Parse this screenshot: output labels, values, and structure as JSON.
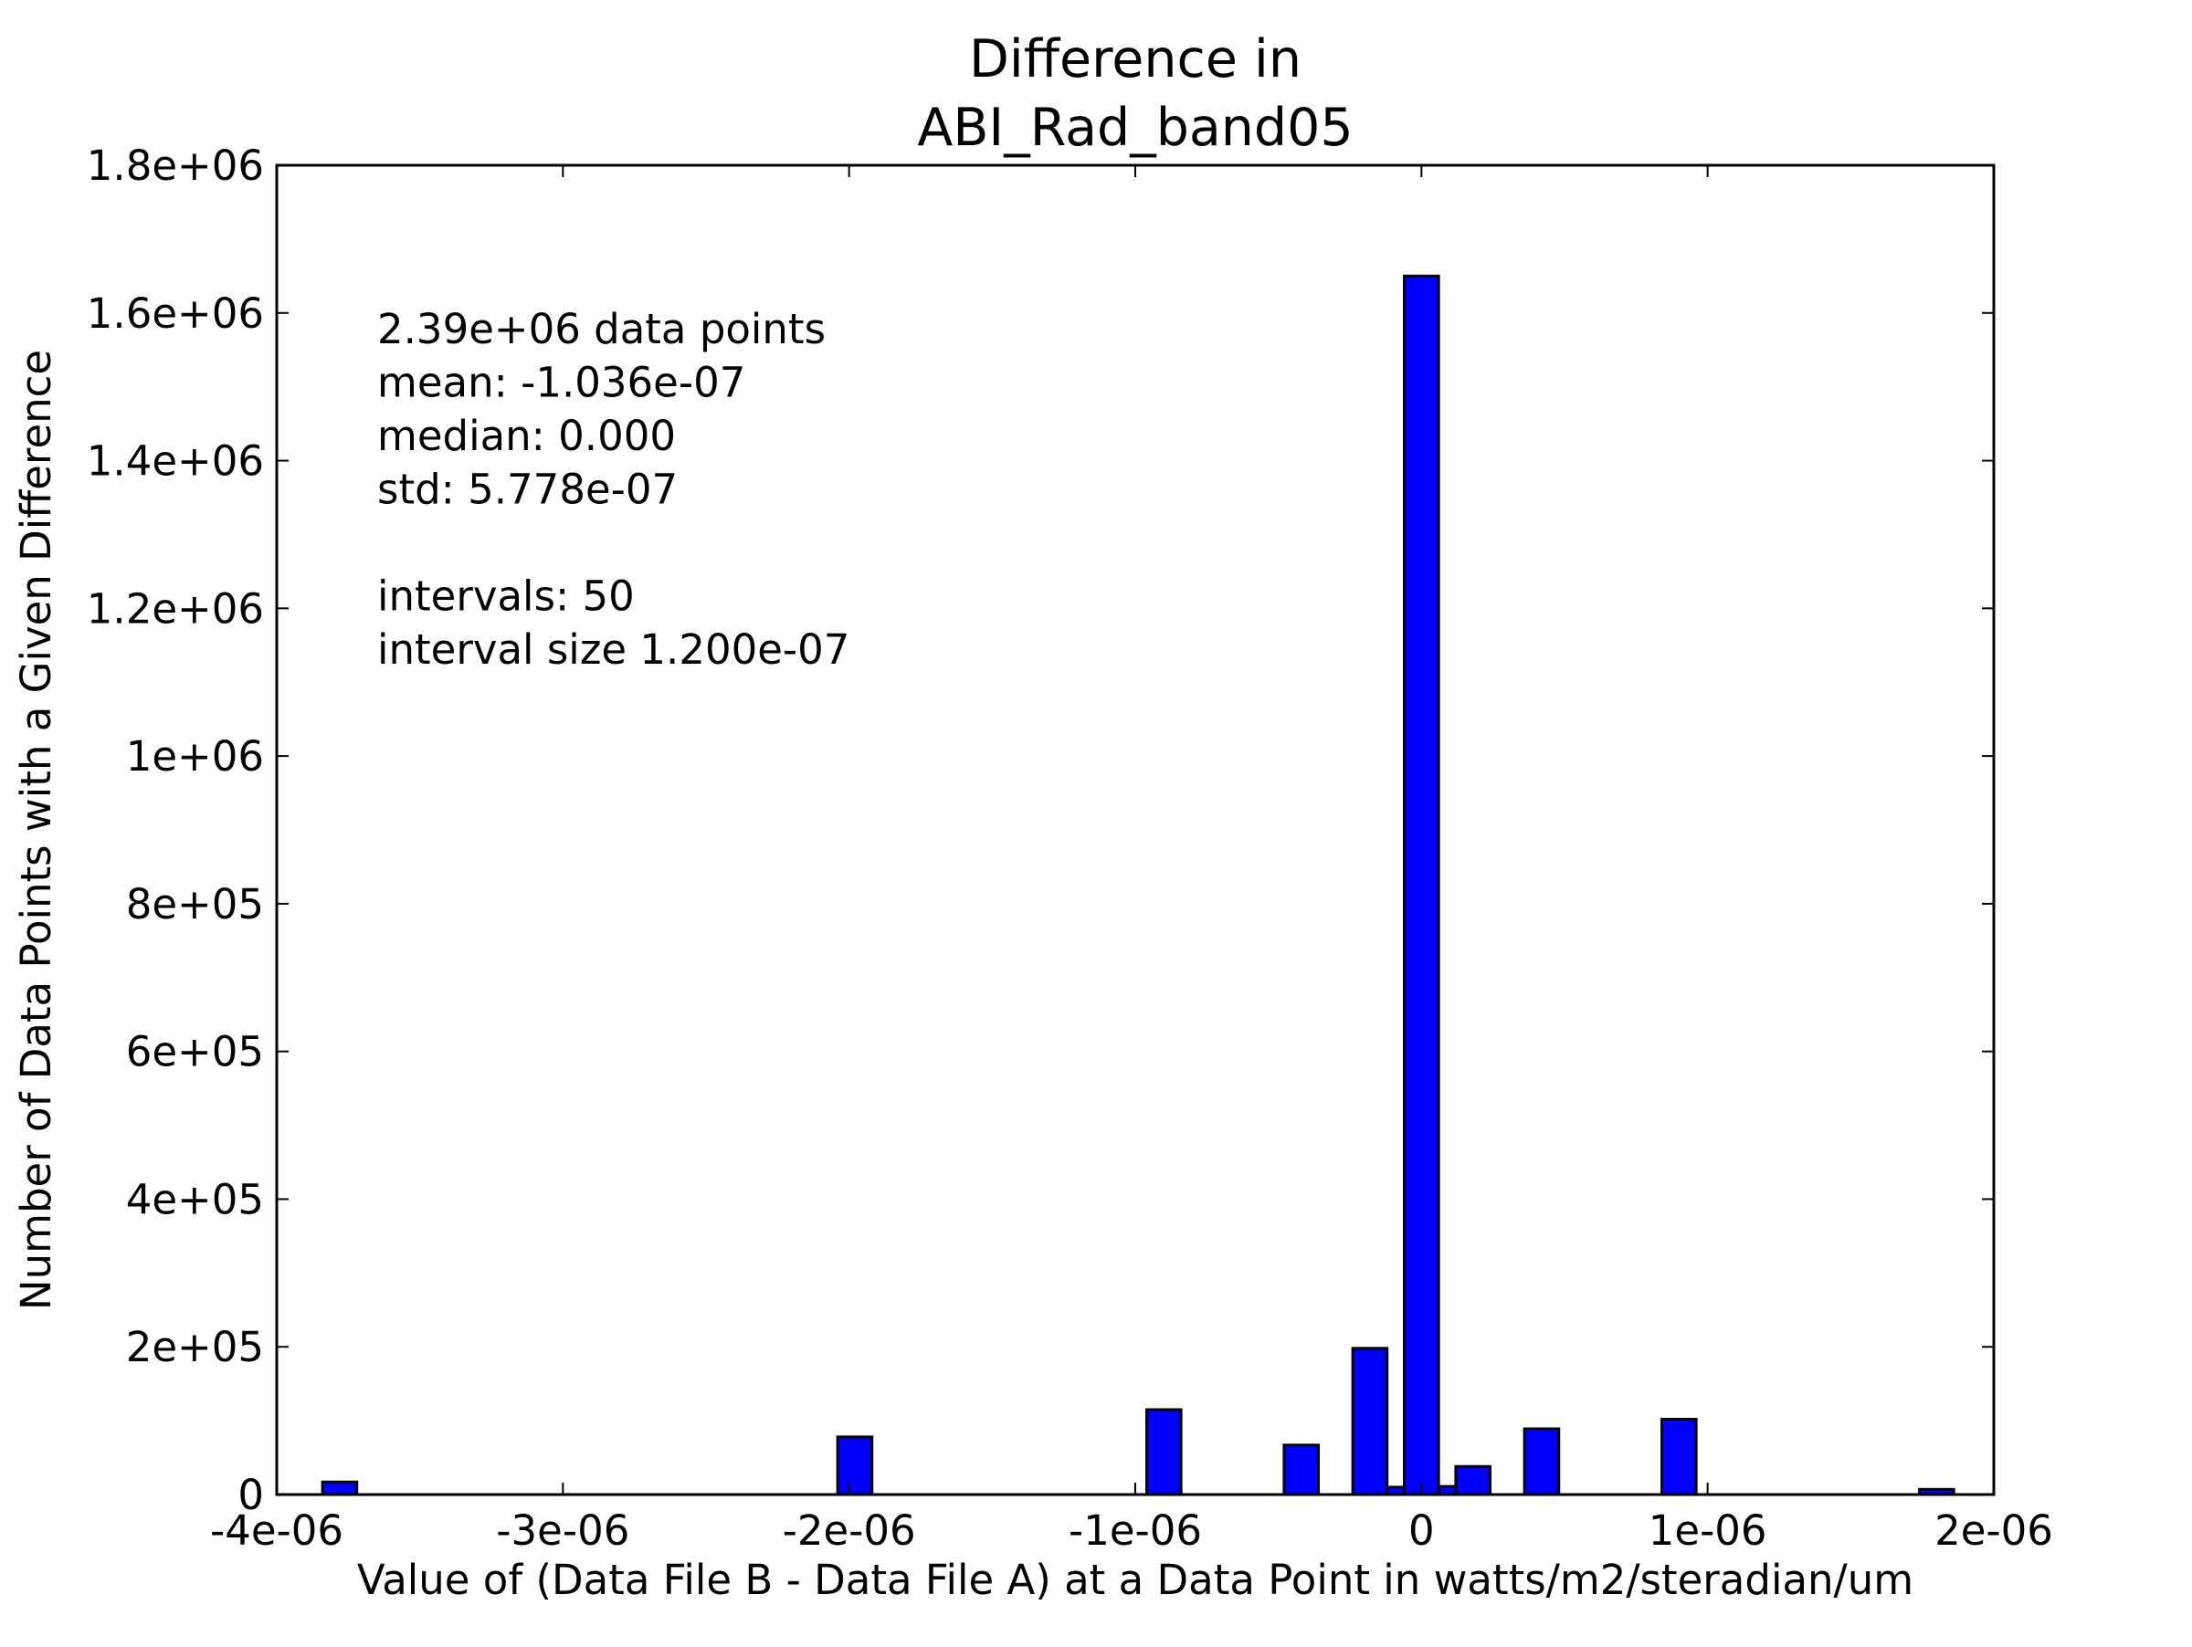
{
  "chart_data": {
    "type": "bar",
    "title": [
      "Difference in",
      "ABI_Rad_band05"
    ],
    "xlabel": "Value of (Data File B - Data File A) at a Data Point in watts/m2/steradian/um",
    "ylabel": "Number of Data Points with a Given Difference",
    "xlim": [
      -4e-06,
      2e-06
    ],
    "ylim": [
      0,
      1800000
    ],
    "x_ticks": [
      -4e-06,
      -3e-06,
      -2e-06,
      -1e-06,
      0,
      1e-06,
      2e-06
    ],
    "x_tick_labels": [
      "-4e-06",
      "-3e-06",
      "-2e-06",
      "-1e-06",
      "0",
      "1e-06",
      "2e-06"
    ],
    "y_ticks": [
      0,
      200000,
      400000,
      600000,
      800000,
      1000000,
      1200000,
      1400000,
      1600000,
      1800000
    ],
    "y_tick_labels": [
      "0",
      "2e+05",
      "4e+05",
      "6e+05",
      "8e+05",
      "1e+06",
      "1.2e+06",
      "1.4e+06",
      "1.6e+06",
      "1.8e+06"
    ],
    "bin_width": 1.2e-07,
    "bins": [
      {
        "x": -3.78e-06,
        "value": 17000
      },
      {
        "x": -1.98e-06,
        "value": 78000
      },
      {
        "x": -9e-07,
        "value": 115000
      },
      {
        "x": -4.2e-07,
        "value": 67000
      },
      {
        "x": -1.8e-07,
        "value": 198000
      },
      {
        "x": -6e-08,
        "value": 10000
      },
      {
        "x": 0.0,
        "value": 1650000
      },
      {
        "x": 1.2e-07,
        "value": 11000
      },
      {
        "x": 1.8e-07,
        "value": 38000
      },
      {
        "x": 4.2e-07,
        "value": 89000
      },
      {
        "x": 9e-07,
        "value": 102000
      },
      {
        "x": 1.8e-06,
        "value": 7000
      }
    ],
    "bar_color": "#0000ff",
    "grid": false,
    "annotations": [
      "2.39e+06 data points",
      "mean: -1.036e-07",
      "median: 0.000",
      "std: 5.778e-07",
      "",
      "intervals: 50",
      "interval size 1.200e-07"
    ]
  }
}
